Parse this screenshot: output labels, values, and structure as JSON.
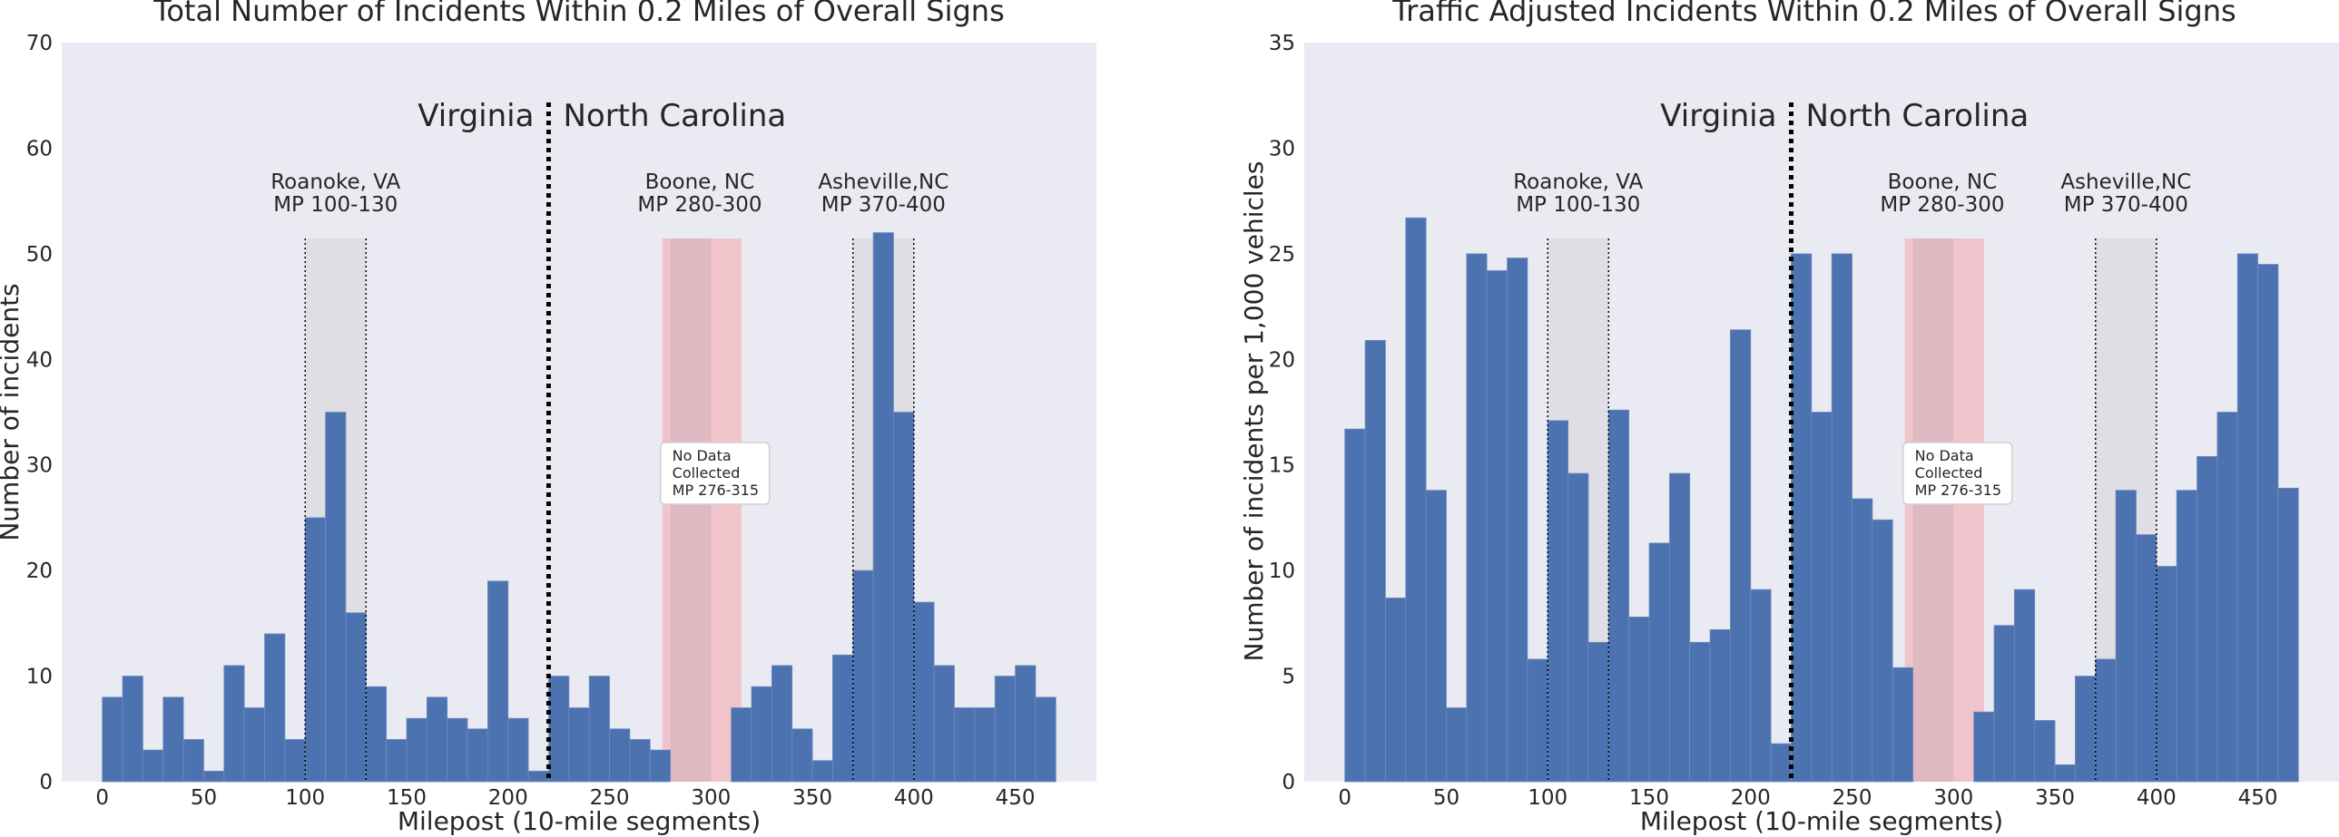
{
  "chart_data": [
    {
      "type": "bar",
      "title": "Total Number of Incidents Within 0.2 Miles of Overall Signs",
      "xlabel": "Milepost (10-mile segments)",
      "ylabel": "Number of incidents",
      "xlim": [
        -20,
        490
      ],
      "ylim": [
        0,
        70
      ],
      "xticks": [
        "0",
        "50",
        "100",
        "150",
        "200",
        "250",
        "300",
        "350",
        "400",
        "450"
      ],
      "yticks": [
        "0",
        "10",
        "20",
        "30",
        "40",
        "50",
        "60",
        "70"
      ],
      "bin_width": 10,
      "x": [
        0,
        10,
        20,
        30,
        40,
        50,
        60,
        70,
        80,
        90,
        100,
        110,
        120,
        130,
        140,
        150,
        160,
        170,
        180,
        190,
        200,
        210,
        220,
        230,
        240,
        250,
        260,
        270,
        310,
        320,
        330,
        340,
        350,
        360,
        370,
        380,
        390,
        400,
        410,
        420,
        430,
        440,
        450,
        460
      ],
      "values": [
        8,
        10,
        3,
        8,
        4,
        1,
        11,
        7,
        14,
        4,
        25,
        35,
        16,
        9,
        4,
        6,
        8,
        6,
        5,
        19,
        6,
        1,
        10,
        7,
        10,
        5,
        4,
        3,
        7,
        9,
        11,
        5,
        2,
        12,
        20,
        52,
        35,
        17,
        11,
        7,
        7,
        10,
        11,
        8
      ],
      "divider_x": 220,
      "state_left": "Virginia",
      "state_right": "North Carolina",
      "shaded_regions": [
        {
          "name": "Roanoke, VA",
          "range_label": "MP 100-130",
          "x0": 100,
          "x1": 130,
          "color": "#dcdce2"
        },
        {
          "name": "Boone, NC",
          "range_label": "MP 280-300",
          "x0": 280,
          "x1": 300,
          "color": "#dbb7bf"
        },
        {
          "name": "Asheville,NC",
          "range_label": "MP 370-400",
          "x0": 370,
          "x1": 400,
          "color": "#dcdce2"
        }
      ],
      "no_data_region": {
        "x0": 276,
        "x1": 315,
        "color": "#f0c4ca",
        "label": [
          "No Data",
          "Collected",
          "MP 276-315"
        ]
      },
      "grid": false
    },
    {
      "type": "bar",
      "title": "Traffic Adjusted Incidents Within 0.2 Miles of Overall Signs",
      "xlabel": "Milepost (10-mile segments)",
      "ylabel": "Number of incidents per 1,000 vehicles",
      "xlim": [
        -20,
        490
      ],
      "ylim": [
        0,
        35
      ],
      "xticks": [
        "0",
        "50",
        "100",
        "150",
        "200",
        "250",
        "300",
        "350",
        "400",
        "450"
      ],
      "yticks": [
        "0",
        "5",
        "10",
        "15",
        "20",
        "25",
        "30",
        "35"
      ],
      "bin_width": 10,
      "x": [
        0,
        10,
        20,
        30,
        40,
        50,
        60,
        70,
        80,
        90,
        100,
        110,
        120,
        130,
        140,
        150,
        160,
        170,
        180,
        190,
        200,
        210,
        220,
        230,
        240,
        250,
        260,
        270,
        310,
        320,
        330,
        340,
        350,
        360,
        370,
        380,
        390,
        400,
        410,
        420,
        430,
        440,
        450,
        460
      ],
      "values": [
        16.7,
        20.9,
        8.7,
        26.7,
        13.8,
        3.5,
        25.0,
        24.2,
        24.8,
        5.8,
        17.1,
        14.6,
        6.6,
        17.6,
        7.8,
        11.3,
        14.6,
        6.6,
        7.2,
        21.4,
        9.1,
        1.8,
        25.0,
        17.5,
        25.0,
        13.4,
        12.4,
        5.4,
        3.3,
        7.4,
        9.1,
        2.9,
        0.8,
        5.0,
        5.8,
        13.8,
        11.7,
        10.2,
        13.8,
        15.4,
        17.5,
        25.0,
        24.5,
        13.9
      ],
      "divider_x": 220,
      "state_left": "Virginia",
      "state_right": "North Carolina",
      "shaded_regions": [
        {
          "name": "Roanoke, VA",
          "range_label": "MP 100-130",
          "x0": 100,
          "x1": 130,
          "color": "#dcdce2"
        },
        {
          "name": "Boone, NC",
          "range_label": "MP 280-300",
          "x0": 280,
          "x1": 300,
          "color": "#dbb7bf"
        },
        {
          "name": "Asheville,NC",
          "range_label": "MP 370-400",
          "x0": 370,
          "x1": 400,
          "color": "#dcdce2"
        }
      ],
      "no_data_region": {
        "x0": 276,
        "x1": 315,
        "color": "#f0c4ca",
        "label": [
          "No Data",
          "Collected",
          "MP 276-315"
        ]
      },
      "grid": false
    }
  ],
  "colors": {
    "bar": "#4c72b0",
    "plot_background": "#eaeaf2"
  }
}
